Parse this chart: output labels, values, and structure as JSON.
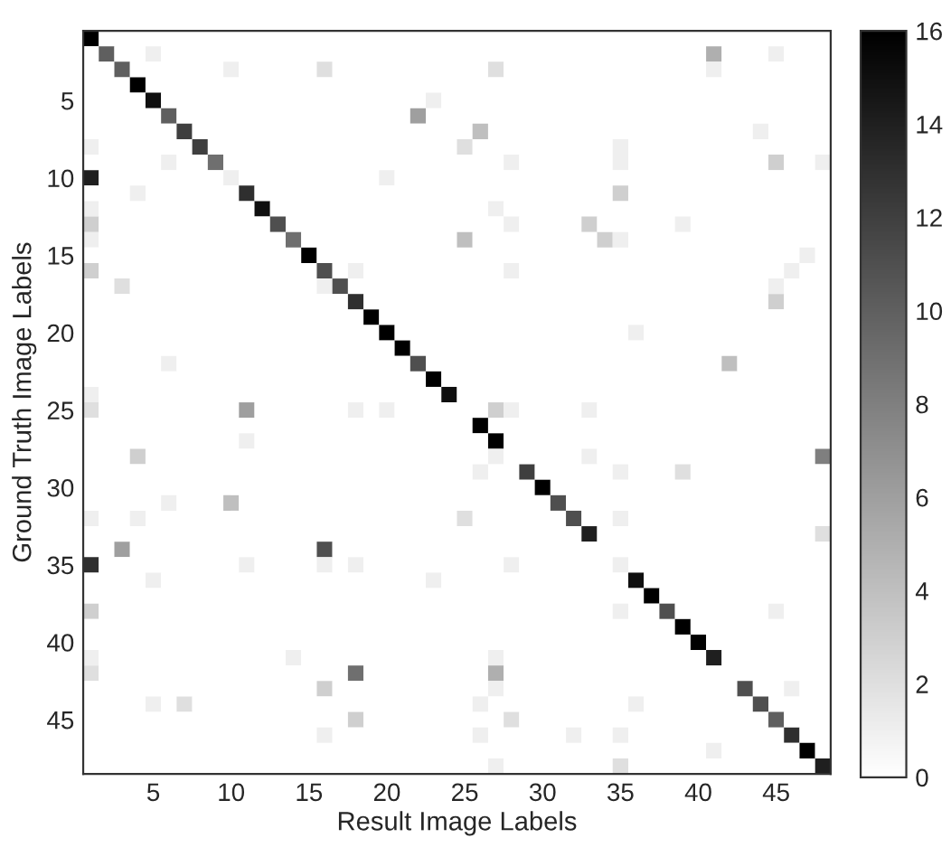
{
  "chart_data": {
    "type": "heatmap",
    "xlabel": "Result Image Labels",
    "ylabel": "Ground Truth Image Labels",
    "categories": [
      null,
      null,
      null,
      null,
      "5",
      null,
      null,
      null,
      null,
      "10",
      null,
      null,
      null,
      null,
      "15",
      null,
      null,
      null,
      null,
      "20",
      null,
      null,
      null,
      null,
      "25",
      null,
      null,
      null,
      null,
      "30",
      null,
      null,
      null,
      null,
      "35",
      null,
      null,
      null,
      null,
      "40",
      null,
      null,
      null,
      null,
      "45",
      null,
      null,
      null
    ],
    "y_categories": [
      null,
      null,
      null,
      null,
      "5",
      null,
      null,
      null,
      null,
      "10",
      null,
      null,
      null,
      null,
      "15",
      null,
      null,
      null,
      null,
      "20",
      null,
      null,
      null,
      null,
      "25",
      null,
      null,
      null,
      null,
      "30",
      null,
      null,
      null,
      null,
      "35",
      null,
      null,
      null,
      null,
      "40",
      null,
      null,
      null,
      null,
      "45",
      null,
      null,
      null
    ],
    "clim": [
      0,
      16
    ],
    "cticks": [
      0,
      2,
      4,
      6,
      8,
      10,
      12,
      14,
      16
    ],
    "cells": [
      [
        16,
        0,
        0,
        0,
        0,
        0,
        0,
        0,
        0,
        0,
        0,
        0,
        0,
        0,
        0,
        0,
        0,
        0,
        0,
        0,
        0,
        0,
        0,
        0,
        0,
        0,
        0,
        0,
        0,
        0,
        0,
        0,
        0,
        0,
        0,
        0,
        0,
        0,
        0,
        0,
        0,
        0,
        0,
        0,
        0,
        0,
        0,
        0
      ],
      [
        0,
        10,
        0,
        0,
        1,
        0,
        0,
        0,
        0,
        0,
        0,
        0,
        0,
        0,
        0,
        0,
        0,
        0,
        0,
        0,
        0,
        0,
        0,
        0,
        0,
        0,
        0,
        0,
        0,
        0,
        0,
        0,
        0,
        0,
        0,
        0,
        0,
        0,
        0,
        0,
        5,
        0,
        0,
        0,
        1,
        0,
        0,
        0
      ],
      [
        0,
        0,
        10,
        0,
        0,
        0,
        0,
        0,
        0,
        1,
        0,
        0,
        0,
        0,
        0,
        2,
        0,
        0,
        0,
        0,
        0,
        0,
        0,
        0,
        0,
        0,
        2,
        0,
        0,
        0,
        0,
        0,
        0,
        0,
        0,
        0,
        0,
        0,
        0,
        0,
        1,
        0,
        0,
        0,
        0,
        0,
        0,
        0
      ],
      [
        0,
        0,
        0,
        16,
        0,
        0,
        0,
        0,
        0,
        0,
        0,
        0,
        0,
        0,
        0,
        0,
        0,
        0,
        0,
        0,
        0,
        0,
        0,
        0,
        0,
        0,
        0,
        0,
        0,
        0,
        0,
        0,
        0,
        0,
        0,
        0,
        0,
        0,
        0,
        0,
        0,
        0,
        0,
        0,
        0,
        0,
        0,
        0
      ],
      [
        0,
        0,
        0,
        0,
        15,
        0,
        0,
        0,
        0,
        0,
        0,
        0,
        0,
        0,
        0,
        0,
        0,
        0,
        0,
        0,
        0,
        0,
        1,
        0,
        0,
        0,
        0,
        0,
        0,
        0,
        0,
        0,
        0,
        0,
        0,
        0,
        0,
        0,
        0,
        0,
        0,
        0,
        0,
        0,
        0,
        0,
        0,
        0
      ],
      [
        0,
        0,
        0,
        0,
        0,
        10,
        0,
        0,
        0,
        0,
        0,
        0,
        0,
        0,
        0,
        0,
        0,
        0,
        0,
        0,
        0,
        6,
        0,
        0,
        0,
        0,
        0,
        0,
        0,
        0,
        0,
        0,
        0,
        0,
        0,
        0,
        0,
        0,
        0,
        0,
        0,
        0,
        0,
        0,
        0,
        0,
        0,
        0
      ],
      [
        0,
        0,
        0,
        0,
        0,
        0,
        12,
        0,
        0,
        0,
        0,
        0,
        0,
        0,
        0,
        0,
        0,
        0,
        0,
        0,
        0,
        0,
        0,
        0,
        0,
        4,
        0,
        0,
        0,
        0,
        0,
        0,
        0,
        0,
        0,
        0,
        0,
        0,
        0,
        0,
        0,
        0,
        0,
        1,
        0,
        0,
        0,
        0
      ],
      [
        1,
        0,
        0,
        0,
        0,
        0,
        0,
        12,
        0,
        0,
        0,
        0,
        0,
        0,
        0,
        0,
        0,
        0,
        0,
        0,
        0,
        0,
        0,
        0,
        2,
        0,
        0,
        0,
        0,
        0,
        0,
        0,
        0,
        0,
        1,
        0,
        0,
        0,
        0,
        0,
        0,
        0,
        0,
        0,
        0,
        0,
        0,
        0
      ],
      [
        0,
        0,
        0,
        0,
        0,
        1,
        0,
        0,
        9,
        0,
        0,
        0,
        0,
        0,
        0,
        0,
        0,
        0,
        0,
        0,
        0,
        0,
        0,
        0,
        0,
        0,
        0,
        1,
        0,
        0,
        0,
        0,
        0,
        0,
        1,
        0,
        0,
        0,
        0,
        0,
        0,
        0,
        0,
        0,
        3,
        0,
        0,
        1
      ],
      [
        14,
        0,
        0,
        0,
        0,
        0,
        0,
        0,
        0,
        1,
        0,
        0,
        0,
        0,
        0,
        0,
        0,
        0,
        0,
        1,
        0,
        0,
        0,
        0,
        0,
        0,
        0,
        0,
        0,
        0,
        0,
        0,
        0,
        0,
        0,
        0,
        0,
        0,
        0,
        0,
        0,
        0,
        0,
        0,
        0,
        0,
        0,
        0
      ],
      [
        0,
        0,
        0,
        1,
        0,
        0,
        0,
        0,
        0,
        0,
        13,
        0,
        0,
        0,
        0,
        0,
        0,
        0,
        0,
        0,
        0,
        0,
        0,
        0,
        0,
        0,
        0,
        0,
        0,
        0,
        0,
        0,
        0,
        0,
        3,
        0,
        0,
        0,
        0,
        0,
        0,
        0,
        0,
        0,
        0,
        0,
        0,
        0
      ],
      [
        1,
        0,
        0,
        0,
        0,
        0,
        0,
        0,
        0,
        0,
        0,
        15,
        0,
        0,
        0,
        0,
        0,
        0,
        0,
        0,
        0,
        0,
        0,
        0,
        0,
        0,
        1,
        0,
        0,
        0,
        0,
        0,
        0,
        0,
        0,
        0,
        0,
        0,
        0,
        0,
        0,
        0,
        0,
        0,
        0,
        0,
        0,
        0
      ],
      [
        3,
        0,
        0,
        0,
        0,
        0,
        0,
        0,
        0,
        0,
        0,
        0,
        11,
        0,
        0,
        0,
        0,
        0,
        0,
        0,
        0,
        0,
        0,
        0,
        0,
        0,
        0,
        1,
        0,
        0,
        0,
        0,
        3,
        0,
        0,
        0,
        0,
        0,
        1,
        0,
        0,
        0,
        0,
        0,
        0,
        0,
        0,
        0
      ],
      [
        1,
        0,
        0,
        0,
        0,
        0,
        0,
        0,
        0,
        0,
        0,
        0,
        0,
        9,
        0,
        0,
        0,
        0,
        0,
        0,
        0,
        0,
        0,
        0,
        4,
        0,
        0,
        0,
        0,
        0,
        0,
        0,
        0,
        3,
        1,
        0,
        0,
        0,
        0,
        0,
        0,
        0,
        0,
        0,
        0,
        0,
        0,
        0
      ],
      [
        0,
        0,
        0,
        0,
        0,
        0,
        0,
        0,
        0,
        0,
        0,
        0,
        0,
        0,
        16,
        0,
        0,
        0,
        0,
        0,
        0,
        0,
        0,
        0,
        0,
        0,
        0,
        0,
        0,
        0,
        0,
        0,
        0,
        0,
        0,
        0,
        0,
        0,
        0,
        0,
        0,
        0,
        0,
        0,
        0,
        0,
        1,
        0
      ],
      [
        3,
        0,
        0,
        0,
        0,
        0,
        0,
        0,
        0,
        0,
        0,
        0,
        0,
        0,
        0,
        11,
        0,
        1,
        0,
        0,
        0,
        0,
        0,
        0,
        0,
        0,
        0,
        1,
        0,
        0,
        0,
        0,
        0,
        0,
        0,
        0,
        0,
        0,
        0,
        0,
        0,
        0,
        0,
        0,
        0,
        1,
        0,
        0
      ],
      [
        0,
        0,
        2,
        0,
        0,
        0,
        0,
        0,
        0,
        0,
        0,
        0,
        0,
        0,
        0,
        1,
        11,
        0,
        0,
        0,
        0,
        0,
        0,
        0,
        0,
        0,
        0,
        0,
        0,
        0,
        0,
        0,
        0,
        0,
        0,
        0,
        0,
        0,
        0,
        0,
        0,
        0,
        0,
        0,
        1,
        0,
        0,
        0
      ],
      [
        0,
        0,
        0,
        0,
        0,
        0,
        0,
        0,
        0,
        0,
        0,
        0,
        0,
        0,
        0,
        0,
        0,
        13,
        0,
        0,
        0,
        0,
        0,
        0,
        0,
        0,
        0,
        0,
        0,
        0,
        0,
        0,
        0,
        0,
        0,
        0,
        0,
        0,
        0,
        0,
        0,
        0,
        0,
        0,
        3,
        0,
        0,
        0
      ],
      [
        0,
        0,
        0,
        0,
        0,
        0,
        0,
        0,
        0,
        0,
        0,
        0,
        0,
        0,
        0,
        0,
        0,
        0,
        16,
        0,
        0,
        0,
        0,
        0,
        0,
        0,
        0,
        0,
        0,
        0,
        0,
        0,
        0,
        0,
        0,
        0,
        0,
        0,
        0,
        0,
        0,
        0,
        0,
        0,
        0,
        0,
        0,
        0
      ],
      [
        0,
        0,
        0,
        0,
        0,
        0,
        0,
        0,
        0,
        0,
        0,
        0,
        0,
        0,
        0,
        0,
        0,
        0,
        0,
        16,
        0,
        0,
        0,
        0,
        0,
        0,
        0,
        0,
        0,
        0,
        0,
        0,
        0,
        0,
        0,
        1,
        0,
        0,
        0,
        0,
        0,
        0,
        0,
        0,
        0,
        0,
        0,
        0
      ],
      [
        0,
        0,
        0,
        0,
        0,
        0,
        0,
        0,
        0,
        0,
        0,
        0,
        0,
        0,
        0,
        0,
        0,
        0,
        0,
        0,
        16,
        0,
        0,
        0,
        0,
        0,
        0,
        0,
        0,
        0,
        0,
        0,
        0,
        0,
        0,
        0,
        0,
        0,
        0,
        0,
        0,
        0,
        0,
        0,
        0,
        0,
        0,
        0
      ],
      [
        0,
        0,
        0,
        0,
        0,
        1,
        0,
        0,
        0,
        0,
        0,
        0,
        0,
        0,
        0,
        0,
        0,
        0,
        0,
        0,
        0,
        11,
        0,
        0,
        0,
        0,
        0,
        0,
        0,
        0,
        0,
        0,
        0,
        0,
        0,
        0,
        0,
        0,
        0,
        0,
        0,
        4,
        0,
        0,
        0,
        0,
        0,
        0
      ],
      [
        0,
        0,
        0,
        0,
        0,
        0,
        0,
        0,
        0,
        0,
        0,
        0,
        0,
        0,
        0,
        0,
        0,
        0,
        0,
        0,
        0,
        0,
        16,
        0,
        0,
        0,
        0,
        0,
        0,
        0,
        0,
        0,
        0,
        0,
        0,
        0,
        0,
        0,
        0,
        0,
        0,
        0,
        0,
        0,
        0,
        0,
        0,
        0
      ],
      [
        1,
        0,
        0,
        0,
        0,
        0,
        0,
        0,
        0,
        0,
        0,
        0,
        0,
        0,
        0,
        0,
        0,
        0,
        0,
        0,
        0,
        0,
        0,
        15,
        0,
        0,
        0,
        0,
        0,
        0,
        0,
        0,
        0,
        0,
        0,
        0,
        0,
        0,
        0,
        0,
        0,
        0,
        0,
        0,
        0,
        0,
        0,
        0
      ],
      [
        2,
        0,
        0,
        0,
        0,
        0,
        0,
        0,
        0,
        0,
        6,
        0,
        0,
        0,
        0,
        0,
        0,
        1,
        0,
        1,
        0,
        0,
        0,
        0,
        0,
        0,
        3,
        1,
        0,
        0,
        0,
        0,
        1,
        0,
        0,
        0,
        0,
        0,
        0,
        0,
        0,
        0,
        0,
        0,
        0,
        0,
        0,
        0
      ],
      [
        0,
        0,
        0,
        0,
        0,
        0,
        0,
        0,
        0,
        0,
        0,
        0,
        0,
        0,
        0,
        0,
        0,
        0,
        0,
        0,
        0,
        0,
        0,
        0,
        0,
        16,
        0,
        0,
        0,
        0,
        0,
        0,
        0,
        0,
        0,
        0,
        0,
        0,
        0,
        0,
        0,
        0,
        0,
        0,
        0,
        0,
        0,
        0
      ],
      [
        0,
        0,
        0,
        0,
        0,
        0,
        0,
        0,
        0,
        0,
        1,
        0,
        0,
        0,
        0,
        0,
        0,
        0,
        0,
        0,
        0,
        0,
        0,
        0,
        0,
        0,
        16,
        0,
        0,
        0,
        0,
        0,
        0,
        0,
        0,
        0,
        0,
        0,
        0,
        0,
        0,
        0,
        0,
        0,
        0,
        0,
        0,
        0
      ],
      [
        0,
        0,
        0,
        3,
        0,
        0,
        0,
        0,
        0,
        0,
        0,
        0,
        0,
        0,
        0,
        0,
        0,
        0,
        0,
        0,
        0,
        0,
        0,
        0,
        0,
        0,
        1,
        0,
        0,
        0,
        0,
        0,
        1,
        0,
        0,
        0,
        0,
        0,
        0,
        0,
        0,
        0,
        0,
        0,
        0,
        0,
        0,
        8
      ],
      [
        0,
        0,
        0,
        0,
        0,
        0,
        0,
        0,
        0,
        0,
        0,
        0,
        0,
        0,
        0,
        0,
        0,
        0,
        0,
        0,
        0,
        0,
        0,
        0,
        0,
        1,
        0,
        0,
        12,
        0,
        0,
        0,
        0,
        0,
        1,
        0,
        0,
        0,
        2,
        0,
        0,
        0,
        0,
        0,
        0,
        0,
        0,
        0
      ],
      [
        0,
        0,
        0,
        0,
        0,
        0,
        0,
        0,
        0,
        0,
        0,
        0,
        0,
        0,
        0,
        0,
        0,
        0,
        0,
        0,
        0,
        0,
        0,
        0,
        0,
        0,
        0,
        0,
        0,
        16,
        0,
        0,
        0,
        0,
        0,
        0,
        0,
        0,
        0,
        0,
        0,
        0,
        0,
        0,
        0,
        0,
        0,
        0
      ],
      [
        0,
        0,
        0,
        0,
        0,
        1,
        0,
        0,
        0,
        4,
        0,
        0,
        0,
        0,
        0,
        0,
        0,
        0,
        0,
        0,
        0,
        0,
        0,
        0,
        0,
        0,
        0,
        0,
        0,
        0,
        11,
        0,
        0,
        0,
        0,
        0,
        0,
        0,
        0,
        0,
        0,
        0,
        0,
        0,
        0,
        0,
        0,
        0
      ],
      [
        1,
        0,
        0,
        1,
        0,
        0,
        0,
        0,
        0,
        0,
        0,
        0,
        0,
        0,
        0,
        0,
        0,
        0,
        0,
        0,
        0,
        0,
        0,
        0,
        2,
        0,
        0,
        0,
        0,
        0,
        0,
        11,
        0,
        0,
        1,
        0,
        0,
        0,
        0,
        0,
        0,
        0,
        0,
        0,
        0,
        0,
        0,
        0
      ],
      [
        0,
        0,
        0,
        0,
        0,
        0,
        0,
        0,
        0,
        0,
        0,
        0,
        0,
        0,
        0,
        0,
        0,
        0,
        0,
        0,
        0,
        0,
        0,
        0,
        0,
        0,
        0,
        0,
        0,
        0,
        0,
        0,
        14,
        0,
        0,
        0,
        0,
        0,
        0,
        0,
        0,
        0,
        0,
        0,
        0,
        0,
        0,
        2
      ],
      [
        0,
        0,
        6,
        0,
        0,
        0,
        0,
        0,
        0,
        0,
        0,
        0,
        0,
        0,
        0,
        11,
        0,
        0,
        0,
        0,
        0,
        0,
        0,
        0,
        0,
        0,
        0,
        0,
        0,
        0,
        0,
        0,
        0,
        0,
        0,
        0,
        0,
        0,
        0,
        0,
        0,
        0,
        0,
        0,
        0,
        0,
        0,
        0
      ],
      [
        13,
        0,
        0,
        0,
        0,
        0,
        0,
        0,
        0,
        0,
        1,
        0,
        0,
        0,
        0,
        1,
        0,
        1,
        0,
        0,
        0,
        0,
        0,
        0,
        0,
        0,
        0,
        1,
        0,
        0,
        0,
        0,
        0,
        0,
        1,
        0,
        0,
        0,
        0,
        0,
        0,
        0,
        0,
        0,
        0,
        0,
        0,
        0
      ],
      [
        0,
        0,
        0,
        0,
        1,
        0,
        0,
        0,
        0,
        0,
        0,
        0,
        0,
        0,
        0,
        0,
        0,
        0,
        0,
        0,
        0,
        0,
        1,
        0,
        0,
        0,
        0,
        0,
        0,
        0,
        0,
        0,
        0,
        0,
        0,
        15,
        0,
        0,
        0,
        0,
        0,
        0,
        0,
        0,
        0,
        0,
        0,
        0
      ],
      [
        0,
        0,
        0,
        0,
        0,
        0,
        0,
        0,
        0,
        0,
        0,
        0,
        0,
        0,
        0,
        0,
        0,
        0,
        0,
        0,
        0,
        0,
        0,
        0,
        0,
        0,
        0,
        0,
        0,
        0,
        0,
        0,
        0,
        0,
        0,
        0,
        16,
        0,
        0,
        0,
        0,
        0,
        0,
        0,
        0,
        0,
        0,
        0
      ],
      [
        3,
        0,
        0,
        0,
        0,
        0,
        0,
        0,
        0,
        0,
        0,
        0,
        0,
        0,
        0,
        0,
        0,
        0,
        0,
        0,
        0,
        0,
        0,
        0,
        0,
        0,
        0,
        0,
        0,
        0,
        0,
        0,
        0,
        0,
        1,
        0,
        0,
        11,
        0,
        0,
        0,
        0,
        0,
        0,
        1,
        0,
        0,
        0
      ],
      [
        0,
        0,
        0,
        0,
        0,
        0,
        0,
        0,
        0,
        0,
        0,
        0,
        0,
        0,
        0,
        0,
        0,
        0,
        0,
        0,
        0,
        0,
        0,
        0,
        0,
        0,
        0,
        0,
        0,
        0,
        0,
        0,
        0,
        0,
        0,
        0,
        0,
        0,
        16,
        0,
        0,
        0,
        0,
        0,
        0,
        0,
        0,
        0
      ],
      [
        0,
        0,
        0,
        0,
        0,
        0,
        0,
        0,
        0,
        0,
        0,
        0,
        0,
        0,
        0,
        0,
        0,
        0,
        0,
        0,
        0,
        0,
        0,
        0,
        0,
        0,
        0,
        0,
        0,
        0,
        0,
        0,
        0,
        0,
        0,
        0,
        0,
        0,
        0,
        16,
        0,
        0,
        0,
        0,
        0,
        0,
        0,
        0
      ],
      [
        1,
        0,
        0,
        0,
        0,
        0,
        0,
        0,
        0,
        0,
        0,
        0,
        0,
        1,
        0,
        0,
        0,
        0,
        0,
        0,
        0,
        0,
        0,
        0,
        0,
        0,
        1,
        0,
        0,
        0,
        0,
        0,
        0,
        0,
        0,
        0,
        0,
        0,
        0,
        0,
        14,
        0,
        0,
        0,
        0,
        0,
        0,
        0
      ],
      [
        2,
        0,
        0,
        0,
        0,
        0,
        0,
        0,
        0,
        0,
        0,
        0,
        0,
        0,
        0,
        0,
        0,
        9,
        0,
        0,
        0,
        0,
        0,
        0,
        0,
        0,
        5,
        0,
        0,
        0,
        0,
        0,
        0,
        0,
        0,
        0,
        0,
        0,
        0,
        0,
        0,
        0,
        0,
        0,
        0,
        0,
        0,
        0
      ],
      [
        0,
        0,
        0,
        0,
        0,
        0,
        0,
        0,
        0,
        0,
        0,
        0,
        0,
        0,
        0,
        3,
        0,
        0,
        0,
        0,
        0,
        0,
        0,
        0,
        0,
        0,
        1,
        0,
        0,
        0,
        0,
        0,
        0,
        0,
        0,
        0,
        0,
        0,
        0,
        0,
        0,
        0,
        11,
        0,
        0,
        1,
        0,
        0
      ],
      [
        0,
        0,
        0,
        0,
        1,
        0,
        2,
        0,
        0,
        0,
        0,
        0,
        0,
        0,
        0,
        0,
        0,
        0,
        0,
        0,
        0,
        0,
        0,
        0,
        0,
        1,
        0,
        0,
        0,
        0,
        0,
        0,
        0,
        0,
        0,
        1,
        0,
        0,
        0,
        0,
        0,
        0,
        0,
        11,
        0,
        0,
        0,
        0
      ],
      [
        0,
        0,
        0,
        0,
        0,
        0,
        0,
        0,
        0,
        0,
        0,
        0,
        0,
        0,
        0,
        0,
        0,
        3,
        0,
        0,
        0,
        0,
        0,
        0,
        0,
        0,
        0,
        2,
        0,
        0,
        0,
        0,
        0,
        0,
        0,
        0,
        0,
        0,
        0,
        0,
        0,
        0,
        0,
        0,
        10,
        0,
        0,
        0
      ],
      [
        0,
        0,
        0,
        0,
        0,
        0,
        0,
        0,
        0,
        0,
        0,
        0,
        0,
        0,
        0,
        1,
        0,
        0,
        0,
        0,
        0,
        0,
        0,
        0,
        0,
        1,
        0,
        0,
        0,
        0,
        0,
        1,
        0,
        0,
        1,
        0,
        0,
        0,
        0,
        0,
        0,
        0,
        0,
        0,
        0,
        13,
        0,
        0
      ],
      [
        0,
        0,
        0,
        0,
        0,
        0,
        0,
        0,
        0,
        0,
        0,
        0,
        0,
        0,
        0,
        0,
        0,
        0,
        0,
        0,
        0,
        0,
        0,
        0,
        0,
        0,
        0,
        0,
        0,
        0,
        0,
        0,
        0,
        0,
        0,
        0,
        0,
        0,
        0,
        0,
        1,
        0,
        0,
        0,
        0,
        0,
        16,
        0
      ],
      [
        0,
        0,
        0,
        0,
        0,
        0,
        0,
        0,
        0,
        0,
        0,
        0,
        0,
        0,
        0,
        0,
        0,
        0,
        0,
        0,
        0,
        0,
        0,
        0,
        0,
        0,
        1,
        0,
        0,
        0,
        0,
        0,
        0,
        0,
        2,
        0,
        0,
        0,
        0,
        0,
        0,
        0,
        0,
        0,
        0,
        0,
        0,
        14
      ]
    ]
  }
}
